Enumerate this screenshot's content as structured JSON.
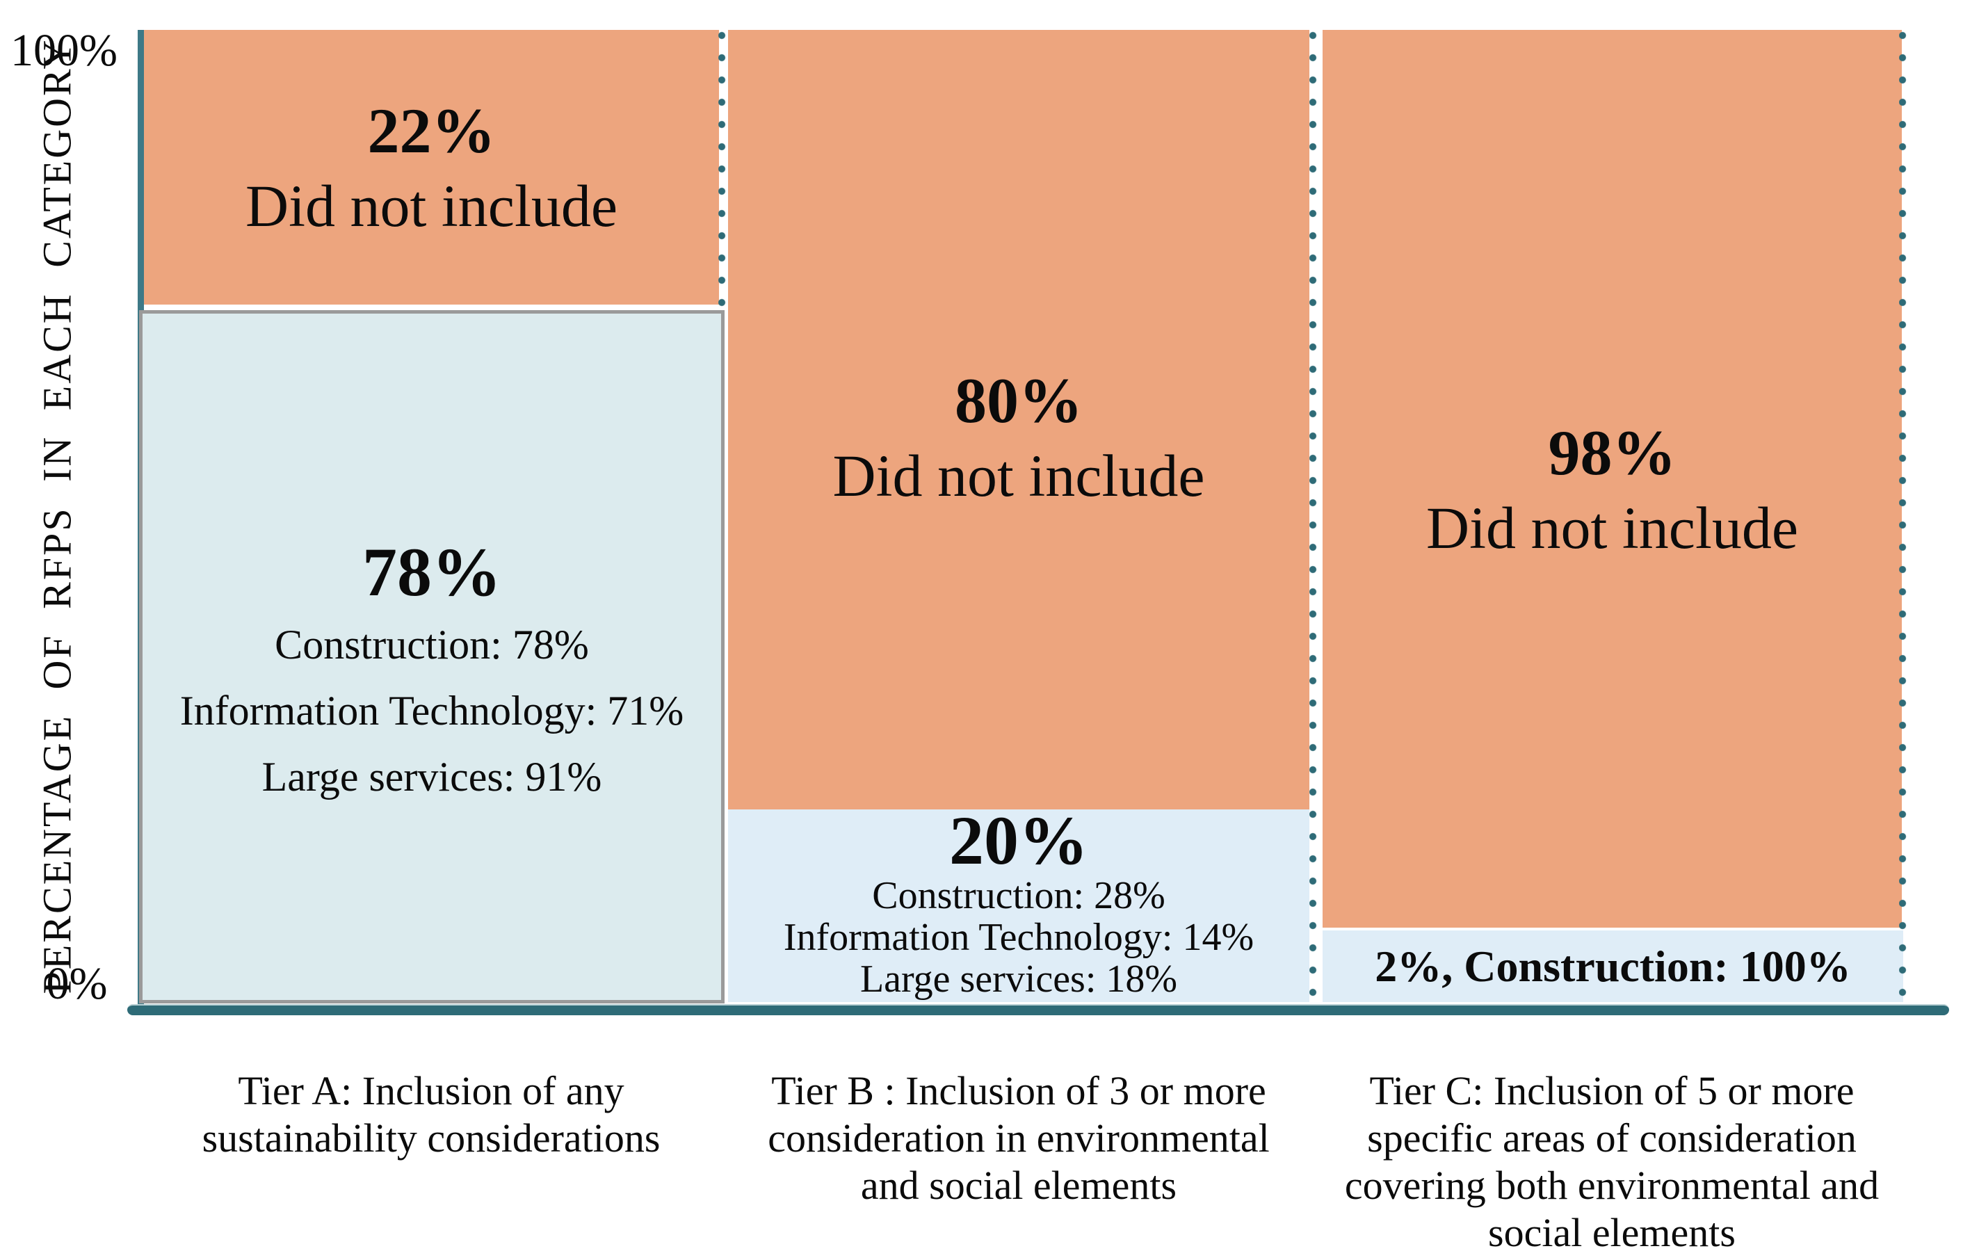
{
  "chart_data": {
    "type": "bar",
    "stacked": true,
    "unit": "percent",
    "title": "",
    "xlabel": "",
    "ylabel": "PERCENTAGE OF RFPS IN EACH CATEGORY",
    "ylim": [
      0,
      100
    ],
    "yticks": [
      "0%",
      "100%"
    ],
    "grid": false,
    "legend": false,
    "categories": [
      "Tier A: Inclusion of any sustainability considerations",
      "Tier B : Inclusion of 3 or more consideration in environmental and social elements",
      "Tier C: Inclusion of 5 or more specific areas of consideration covering both environmental and social elements"
    ],
    "series": [
      {
        "name": "Included",
        "color": "#dfedf7",
        "values": [
          78,
          20,
          2
        ]
      },
      {
        "name": "Did not include",
        "color": "#eda57e",
        "values": [
          22,
          80,
          98
        ]
      }
    ],
    "included_breakdown_by_sector": [
      {
        "tier": "A",
        "Construction": 78,
        "Information Technology": 71,
        "Large services": 91
      },
      {
        "tier": "B",
        "Construction": 28,
        "Information Technology": 14,
        "Large services": 18
      },
      {
        "tier": "C",
        "Construction": 100
      }
    ]
  },
  "axis": {
    "top_label": "100%",
    "bottom_label": "0%",
    "title": "PERCENTAGE OF RFPS IN EACH CATEGORY"
  },
  "tiers": [
    {
      "not_included": {
        "pct": "22%",
        "label": "Did not include"
      },
      "included": {
        "pct": "78%",
        "lines": [
          "Construction: 78%",
          "Information Technology: 71%",
          "Large services: 91%"
        ]
      },
      "axis_label_lines": [
        "Tier A: Inclusion of any",
        "sustainability considerations"
      ]
    },
    {
      "not_included": {
        "pct": "80%",
        "label": "Did not include"
      },
      "included": {
        "pct": "20%",
        "lines": [
          "Construction: 28%",
          "Information Technology: 14%",
          "Large services: 18%"
        ]
      },
      "axis_label_lines": [
        "Tier B : Inclusion of 3 or more",
        "consideration in environmental",
        "and social elements"
      ]
    },
    {
      "not_included": {
        "pct": "98%",
        "label": "Did not include"
      },
      "included": {
        "note": "2%, Construction: 100%"
      },
      "axis_label_lines": [
        "Tier C: Inclusion of 5 or more",
        "specific areas of consideration",
        "covering both environmental and",
        "social elements"
      ]
    }
  ],
  "colors": {
    "did_not_include_fill": "#eda57e",
    "included_fill": "#dfedf7",
    "included_fill_tier_a": "#dcebee",
    "tier_a_box_border": "#9a9a9a",
    "axis_teal": "#3e7987",
    "baseline_teal": "#2e6b77",
    "dotted_separator": "#2e6b77",
    "text": "#0b0b0b"
  }
}
